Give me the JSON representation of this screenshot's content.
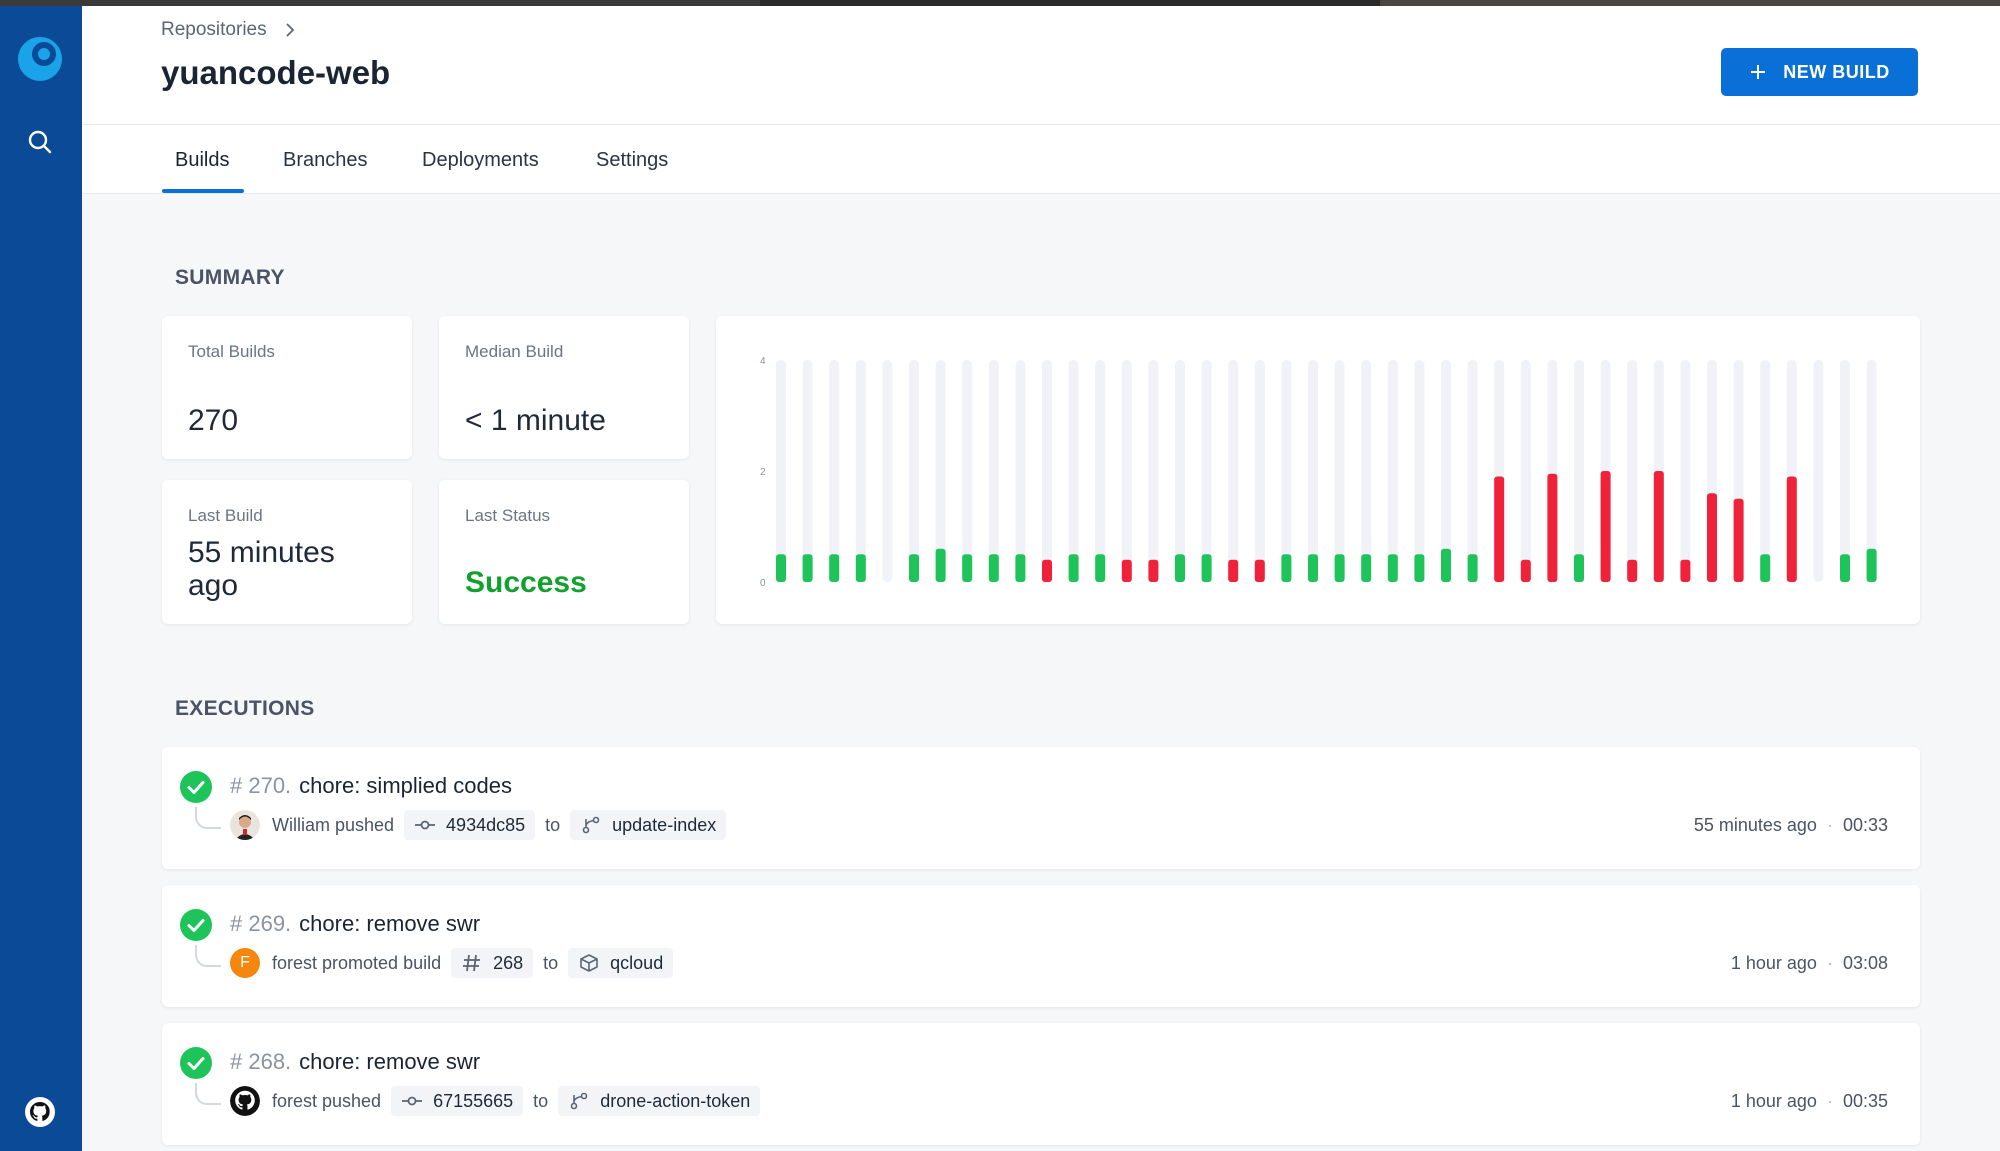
{
  "breadcrumb": {
    "root": "Repositories"
  },
  "repo": {
    "name": "yuancode-web"
  },
  "header": {
    "new_build_label": "NEW BUILD"
  },
  "tabs": [
    {
      "label": "Builds",
      "active": true
    },
    {
      "label": "Branches"
    },
    {
      "label": "Deployments"
    },
    {
      "label": "Settings"
    }
  ],
  "summary": {
    "title": "SUMMARY",
    "total_builds": {
      "label": "Total Builds",
      "value": "270"
    },
    "median_build": {
      "label": "Median Build",
      "value": "< 1 minute"
    },
    "last_build": {
      "label": "Last Build",
      "value": "55 minutes ago"
    },
    "last_status": {
      "label": "Last Status",
      "value": "Success"
    }
  },
  "chart_data": {
    "type": "bar",
    "title": "",
    "xlabel": "",
    "ylabel": "",
    "ylim": [
      0,
      4
    ],
    "yticks": [
      "0",
      "2",
      "4"
    ],
    "colors": {
      "success": "#1ec45a",
      "failure": "#f0213a",
      "track": "#f0f2f7"
    },
    "values": [
      0.5,
      0.5,
      0.5,
      0.5,
      null,
      0.5,
      0.6,
      0.5,
      0.5,
      0.5,
      0.4,
      0.5,
      0.5,
      0.4,
      0.4,
      0.5,
      0.5,
      0.4,
      0.4,
      0.5,
      0.5,
      0.5,
      0.5,
      0.5,
      0.5,
      0.6,
      0.5,
      1.9,
      0.4,
      1.95,
      0.5,
      2.0,
      0.4,
      2.0,
      0.4,
      1.6,
      1.5,
      0.5,
      1.9,
      null,
      0.5,
      0.6
    ],
    "status": [
      "success",
      "success",
      "success",
      "success",
      null,
      "success",
      "success",
      "success",
      "success",
      "success",
      "failure",
      "success",
      "success",
      "failure",
      "failure",
      "success",
      "success",
      "failure",
      "failure",
      "success",
      "success",
      "success",
      "success",
      "success",
      "success",
      "success",
      "success",
      "failure",
      "failure",
      "failure",
      "success",
      "failure",
      "failure",
      "failure",
      "failure",
      "failure",
      "failure",
      "success",
      "failure",
      null,
      "success",
      "success"
    ]
  },
  "executions": {
    "title": "EXECUTIONS",
    "items": [
      {
        "number": "# 270.",
        "message": "chore: simplied codes",
        "author": "William pushed",
        "ref_chip": "4934dc85",
        "to": "to",
        "target_chip": "update-index",
        "ago": "55 minutes ago",
        "duration": "00:33",
        "separator": "·"
      },
      {
        "number": "# 269.",
        "message": "chore: remove swr",
        "author": "forest promoted build",
        "avatar_letter": "F",
        "ref_chip": "268",
        "to": "to",
        "target_chip": "qcloud",
        "ago": "1 hour ago",
        "duration": "03:08",
        "separator": "·"
      },
      {
        "number": "# 268.",
        "message": "chore: remove swr",
        "author": "forest pushed",
        "ref_chip": "67155665",
        "to": "to",
        "target_chip": "drone-action-token",
        "ago": "1 hour ago",
        "duration": "00:35",
        "separator": "·"
      }
    ]
  }
}
